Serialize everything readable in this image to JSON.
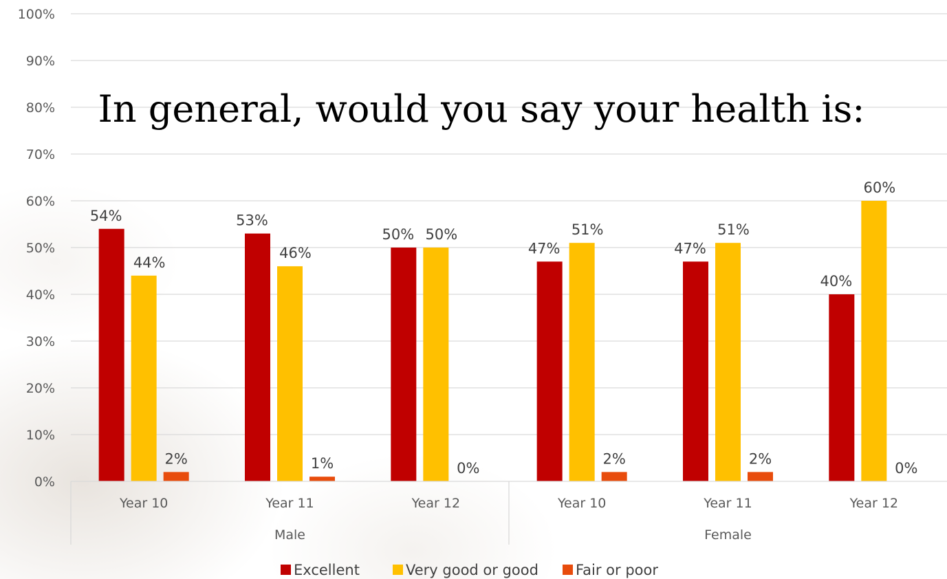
{
  "chart_data": {
    "type": "bar",
    "title": "In general, would you say your health is:",
    "categories": [
      "Year 10",
      "Year 11",
      "Year 12",
      "Year 10",
      "Year 11",
      "Year 12"
    ],
    "groups": [
      {
        "label": "Male",
        "start": 0,
        "end": 2
      },
      {
        "label": "Female",
        "start": 3,
        "end": 5
      }
    ],
    "series": [
      {
        "name": "Excellent",
        "color": "#C00000",
        "values": [
          54,
          53,
          50,
          47,
          47,
          40
        ]
      },
      {
        "name": "Very good or good",
        "color": "#FFC000",
        "values": [
          44,
          46,
          50,
          51,
          51,
          60
        ]
      },
      {
        "name": "Fair or poor",
        "color": "#E84C0C",
        "values": [
          2,
          1,
          0,
          2,
          2,
          0
        ]
      }
    ],
    "ylim": [
      0,
      100
    ],
    "ytick_step": 10,
    "y_format": "percent",
    "grid": true,
    "legend_position": "bottom"
  }
}
